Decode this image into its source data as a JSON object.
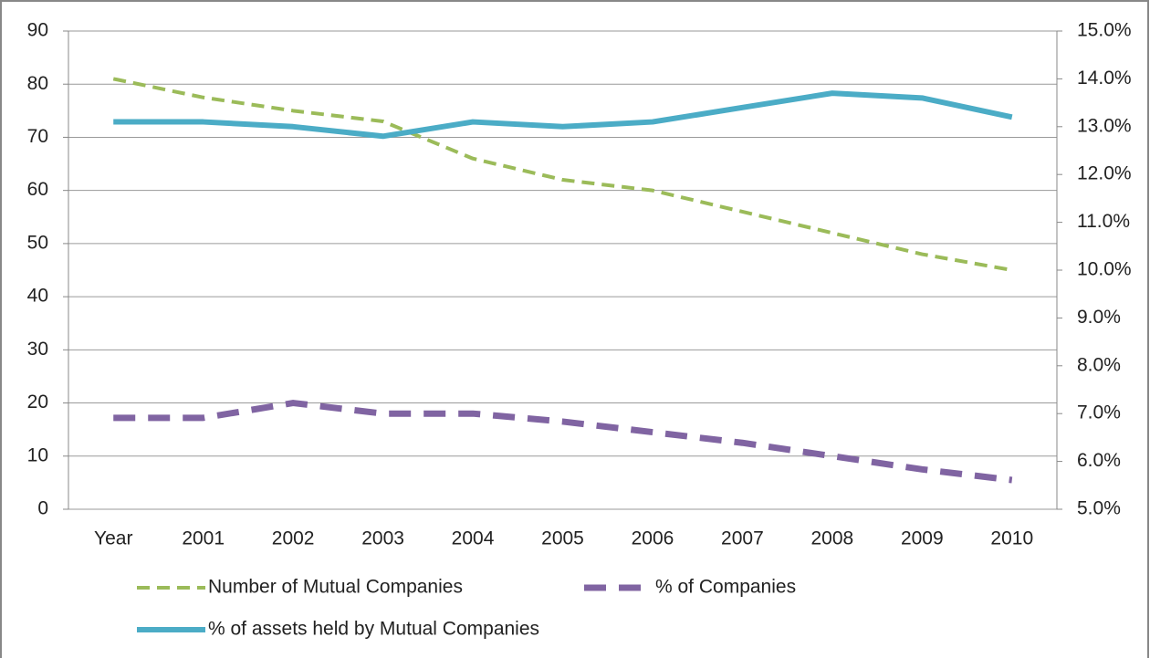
{
  "chart_data": {
    "type": "line",
    "categories": [
      "Year",
      "2001",
      "2002",
      "2003",
      "2004",
      "2005",
      "2006",
      "2007",
      "2008",
      "2009",
      "2010"
    ],
    "series": [
      {
        "name": "Number of Mutual Companies",
        "color": "#9bbb59",
        "dashed": true,
        "width": 4,
        "values": [
          81,
          77.5,
          75,
          73,
          66,
          62,
          60,
          56,
          52,
          48,
          45
        ]
      },
      {
        "name": "% of Companies",
        "color": "#8064a2",
        "dashed": true,
        "width": 7,
        "values": [
          17.2,
          17.2,
          20,
          18,
          18,
          16.5,
          14.5,
          12.5,
          10,
          7.5,
          5.5
        ]
      },
      {
        "name": "% of assets held by Mutual Companies",
        "color": "#4bacc6",
        "dashed": false,
        "width": 6,
        "axis": "y2",
        "values": [
          13.1,
          13.1,
          13.0,
          12.8,
          13.1,
          13.0,
          13.1,
          13.4,
          13.7,
          13.6,
          13.2
        ]
      }
    ],
    "ylim": [
      0,
      90
    ],
    "yticks": [
      0,
      10,
      20,
      30,
      40,
      50,
      60,
      70,
      80,
      90
    ],
    "y2lim": [
      5,
      15
    ],
    "y2ticks": [
      {
        "value": 5,
        "label": "5.0%"
      },
      {
        "value": 6,
        "label": "6.0%"
      },
      {
        "value": 7,
        "label": "7.0%"
      },
      {
        "value": 8,
        "label": "8.0%"
      },
      {
        "value": 9,
        "label": "9.0%"
      },
      {
        "value": 10,
        "label": "10.0%"
      },
      {
        "value": 11,
        "label": "11.0%"
      },
      {
        "value": 12,
        "label": "12.0%"
      },
      {
        "value": 13,
        "label": "13.0%"
      },
      {
        "value": 14,
        "label": "14.0%"
      },
      {
        "value": 15,
        "label": "15.0%"
      }
    ],
    "grid": true
  }
}
